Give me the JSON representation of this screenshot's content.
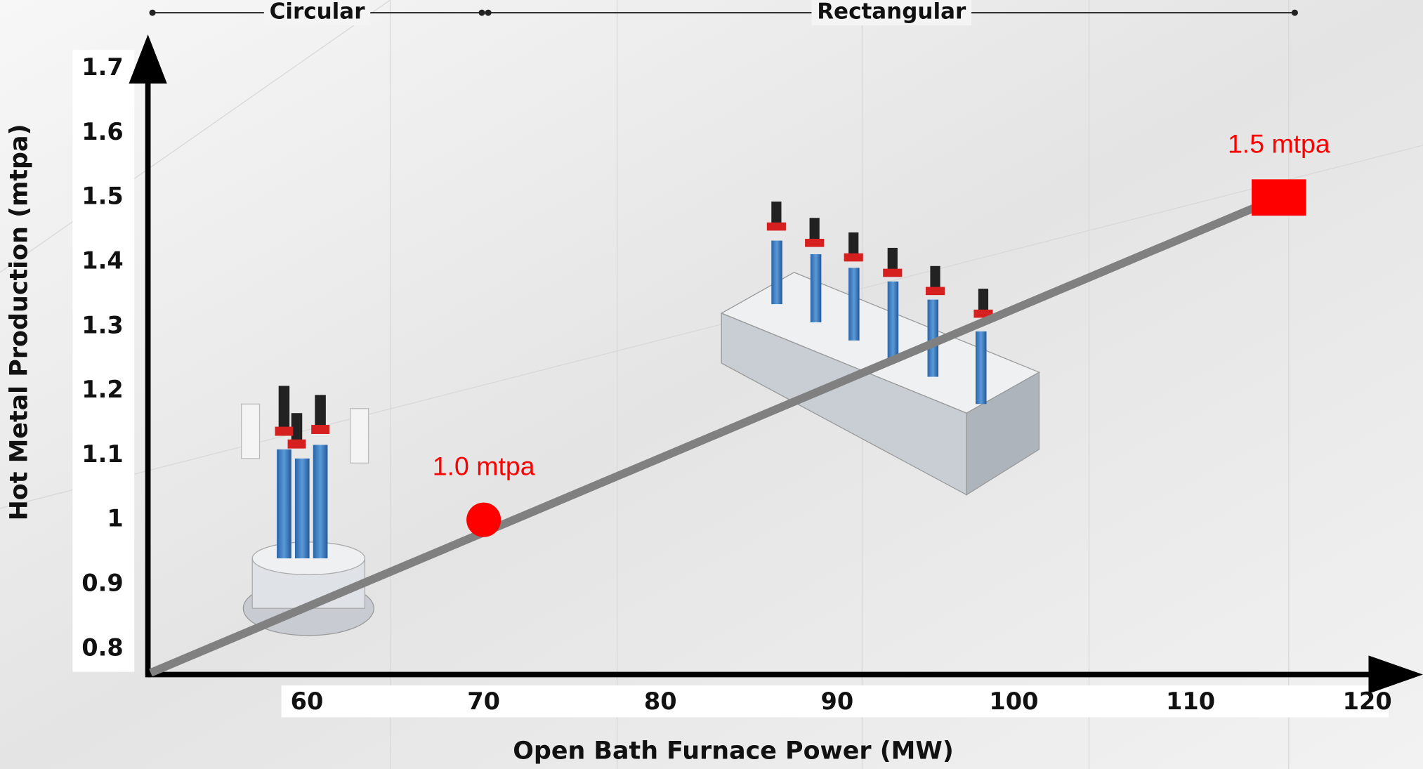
{
  "chart_data": {
    "type": "scatter",
    "xlabel": "Open Bath Furnace Power (MW)",
    "ylabel": "Hot Metal Production  (mtpa)",
    "xlim": [
      51,
      123
    ],
    "xticks": [
      60,
      70,
      80,
      90,
      100,
      110,
      120
    ],
    "ylim": [
      0.76,
      1.75
    ],
    "yticks": [
      0.8,
      0.9,
      1.0,
      1.1,
      1.2,
      1.3,
      1.4,
      1.5,
      1.6,
      1.7
    ],
    "x": [
      70,
      115
    ],
    "values": [
      1.0,
      1.5
    ],
    "value_labels": [
      "1.0 mtpa",
      "1.5 mtpa"
    ],
    "markers": [
      "circle",
      "square"
    ],
    "color": "#ff0000",
    "line_color": "#808080",
    "regions": [
      {
        "label": "Circular",
        "from": 51,
        "to": 70
      },
      {
        "label": "Rectangular",
        "from": 70,
        "to": 116
      }
    ]
  }
}
